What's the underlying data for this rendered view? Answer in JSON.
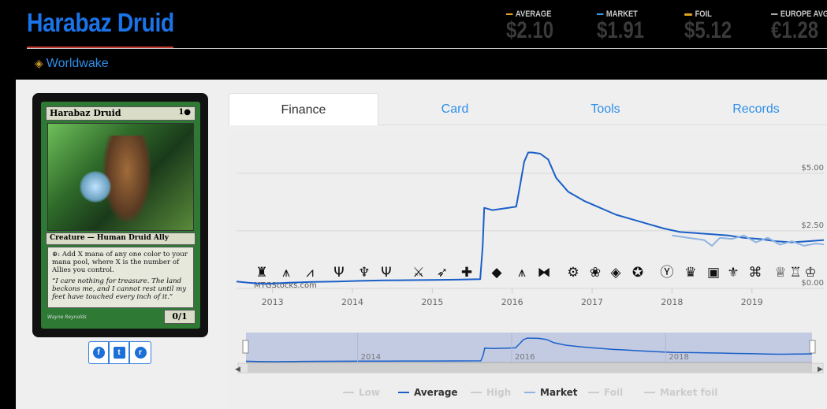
{
  "header": {
    "title": "Harabaz Druid",
    "set_name": "Worldwake",
    "set_icon": "set-symbol-icon"
  },
  "prices": {
    "average": {
      "label": "AVERAGE",
      "value": "$2.10",
      "color": "#e0a020"
    },
    "market": {
      "label": "MARKET",
      "value": "$1.91",
      "color": "#3a9ad9"
    },
    "foil": {
      "label": "FOIL",
      "value": "$5.12",
      "color": "#e0a020"
    },
    "europe": {
      "label": "EUROPE AVG",
      "value": "€1.28",
      "color": "#aaaaaa"
    }
  },
  "card": {
    "name": "Harabaz Druid",
    "cost": "1●",
    "type_line": "Creature — Human Druid Ally",
    "rules_text": "⊕: Add X mana of any one color to your mana pool, where X is the number of Allies you control.",
    "flavor_text": "“I care nothing for treasure. The land beckons me, and I cannot rest until my feet have touched every inch of it.”",
    "pt": "0/1",
    "artist": "Wayne Reynolds"
  },
  "share": {
    "facebook": "f",
    "twitter": "t",
    "reddit": "r"
  },
  "tabs": [
    {
      "label": "Finance",
      "active": true
    },
    {
      "label": "Card",
      "active": false
    },
    {
      "label": "Tools",
      "active": false
    },
    {
      "label": "Records",
      "active": false
    }
  ],
  "chart_data": {
    "type": "line",
    "watermark": "MTGStocks.com",
    "x_ticks": [
      "2013",
      "2014",
      "2015",
      "2016",
      "2017",
      "2018",
      "2019"
    ],
    "y_ticks": [
      "$0.00",
      "$2.50",
      "$5.00"
    ],
    "ylim": [
      0,
      6.5
    ],
    "xlim": [
      2012.55,
      2019.9
    ],
    "navigator_ticks": [
      "2014",
      "2016",
      "2018"
    ],
    "legend": [
      {
        "name": "Low",
        "active": false,
        "color": "#cccccc"
      },
      {
        "name": "Average",
        "active": true,
        "color": "#1a5fc8"
      },
      {
        "name": "High",
        "active": false,
        "color": "#cccccc"
      },
      {
        "name": "Market",
        "active": true,
        "color": "#8fb4e0"
      },
      {
        "name": "Foil",
        "active": false,
        "color": "#cccccc"
      },
      {
        "name": "Market foil",
        "active": false,
        "color": "#cccccc"
      }
    ],
    "series": [
      {
        "name": "Average",
        "color": "#1a5fc8",
        "x": [
          2012.55,
          2012.7,
          2012.9,
          2013.2,
          2013.5,
          2013.8,
          2014.1,
          2014.4,
          2014.7,
          2015.0,
          2015.3,
          2015.6,
          2015.63,
          2015.65,
          2015.75,
          2015.85,
          2015.95,
          2016.05,
          2016.1,
          2016.15,
          2016.2,
          2016.25,
          2016.35,
          2016.45,
          2016.55,
          2016.7,
          2016.9,
          2017.1,
          2017.3,
          2017.5,
          2017.7,
          2017.9,
          2018.1,
          2018.3,
          2018.5,
          2018.7,
          2018.9,
          2019.1,
          2019.3,
          2019.5,
          2019.7,
          2019.9
        ],
        "values": [
          0.3,
          0.25,
          0.2,
          0.25,
          0.28,
          0.3,
          0.33,
          0.35,
          0.36,
          0.37,
          0.38,
          0.4,
          1.8,
          3.5,
          3.4,
          3.45,
          3.5,
          3.55,
          4.5,
          5.5,
          5.9,
          5.9,
          5.85,
          5.6,
          4.8,
          4.2,
          3.8,
          3.5,
          3.2,
          3.0,
          2.8,
          2.6,
          2.45,
          2.4,
          2.35,
          2.3,
          2.2,
          2.15,
          2.05,
          2.0,
          2.05,
          2.1
        ]
      },
      {
        "name": "Market",
        "color": "#8fb4e0",
        "x": [
          2018.0,
          2018.2,
          2018.4,
          2018.5,
          2018.6,
          2018.75,
          2018.9,
          2019.05,
          2019.2,
          2019.35,
          2019.5,
          2019.65,
          2019.8,
          2019.9
        ],
        "values": [
          2.3,
          2.2,
          2.1,
          1.85,
          2.2,
          2.15,
          2.3,
          2.0,
          2.2,
          1.9,
          2.05,
          1.85,
          1.95,
          1.91
        ]
      }
    ]
  }
}
